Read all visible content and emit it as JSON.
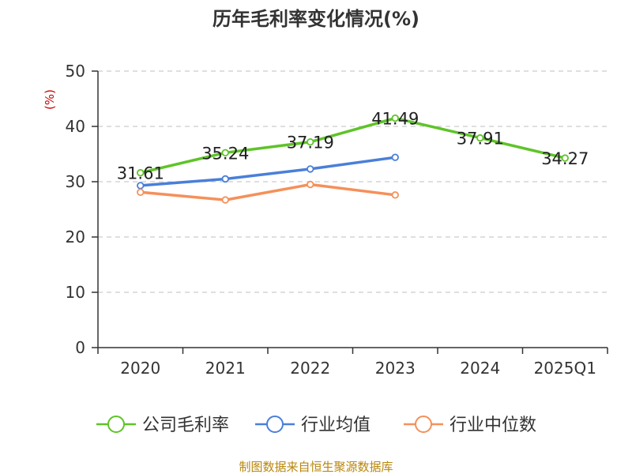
{
  "chart_data": {
    "type": "line",
    "title": "历年毛利率变化情况(%)",
    "xlabel": "",
    "ylabel": "(%)",
    "categories": [
      "2020",
      "2021",
      "2022",
      "2023",
      "2024",
      "2025Q1"
    ],
    "yticks": [
      0,
      10,
      20,
      30,
      40,
      50
    ],
    "ylim": [
      0,
      50
    ],
    "grid": true,
    "legend_position": "bottom",
    "series": [
      {
        "name": "公司毛利率",
        "color": "#5ec428",
        "values": [
          31.61,
          35.24,
          37.19,
          41.49,
          37.91,
          34.27
        ],
        "labels": [
          "31.61",
          "35.24",
          "37.19",
          "41.49",
          "37.91",
          "34.27"
        ]
      },
      {
        "name": "行业均值",
        "color": "#4a7fd9",
        "values": [
          29.3,
          30.5,
          32.3,
          34.4,
          null,
          null
        ]
      },
      {
        "name": "行业中位数",
        "color": "#f5905a",
        "values": [
          28.1,
          26.7,
          29.5,
          27.6,
          null,
          null
        ]
      }
    ],
    "source": "制图数据来自恒生聚源数据库"
  }
}
